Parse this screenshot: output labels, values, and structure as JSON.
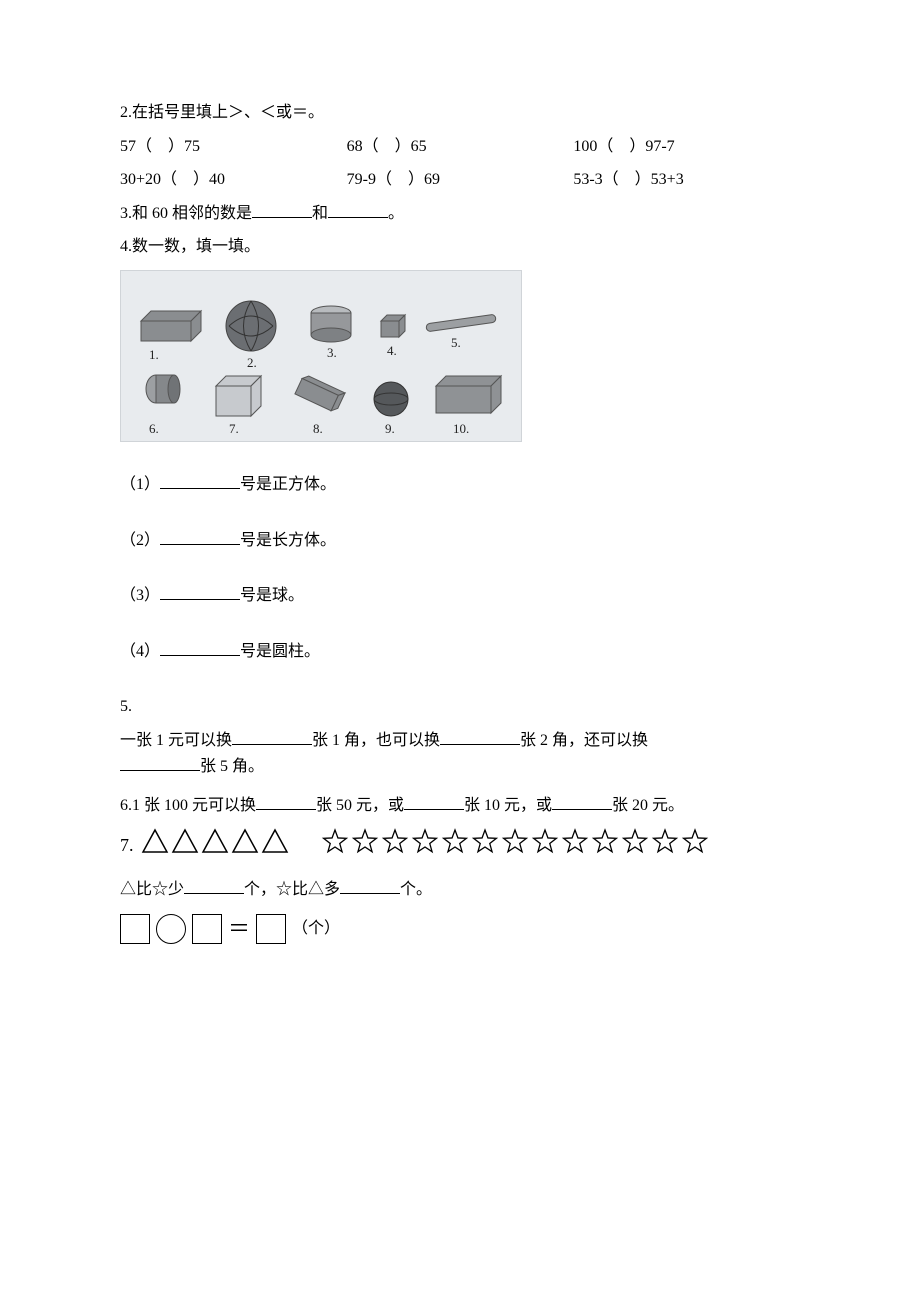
{
  "q2": {
    "title": "2.在括号里填上＞、＜或＝。",
    "row1": [
      "57（    ）75",
      "68（    ）65",
      "100（    ）97-7"
    ],
    "row2": [
      "30+20（    ）40",
      "79-9（    ）69",
      "53-3（    ）53+3"
    ]
  },
  "q3": {
    "pre": "3.和 60 相邻的数是",
    "mid": "和",
    "post": "。"
  },
  "q4": {
    "title": "4.数一数，填一填。",
    "labels": [
      "1.",
      "2.",
      "3.",
      "4.",
      "5.",
      "6.",
      "7.",
      "8.",
      "9.",
      "10."
    ],
    "subs": [
      {
        "no": "（1）",
        "tail": "号是正方体。"
      },
      {
        "no": "（2）",
        "tail": "号是长方体。"
      },
      {
        "no": "（3）",
        "tail": "号是球。"
      },
      {
        "no": "（4）",
        "tail": "号是圆柱。"
      }
    ]
  },
  "q5": {
    "no": "5.",
    "t1": "一张 1 元可以换",
    "t2": "张 1 角，也可以换",
    "t3": "张 2 角，还可以换",
    "t4": "张 5 角。"
  },
  "q6": {
    "t1": "6.1 张 100 元可以换",
    "t2": "张 50 元，或",
    "t3": "张 10 元，或",
    "t4": "张 20 元。"
  },
  "q7": {
    "no": "7.",
    "triangle_count": 5,
    "star_count": 13,
    "cmp1": "△比☆少",
    "cmp_mid": "个，☆比△多",
    "cmp_end": "个。",
    "unit": "（个）",
    "colors": {
      "stroke": "#000000",
      "fill": "#ffffff",
      "bg": "#ffffff"
    }
  }
}
